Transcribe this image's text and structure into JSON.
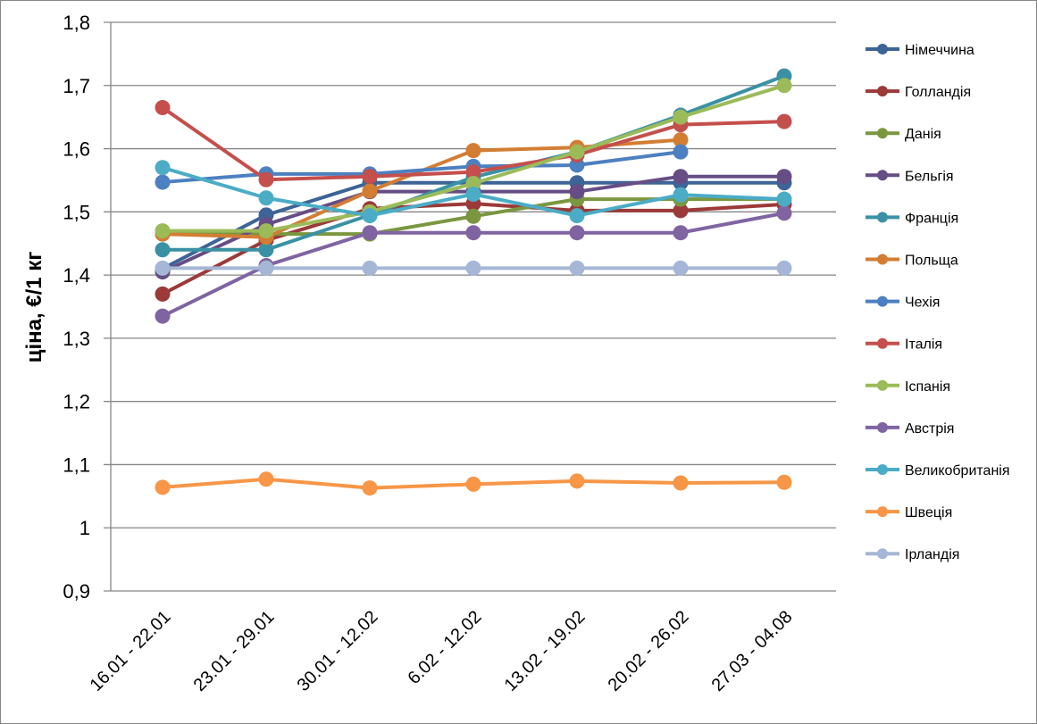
{
  "chart_data": {
    "type": "line",
    "title": "",
    "xlabel": "",
    "ylabel": "ціна, €/1 кг",
    "ylim": [
      0.9,
      1.8
    ],
    "yticks": [
      "0,9",
      "1",
      "1,1",
      "1,2",
      "1,3",
      "1,4",
      "1,5",
      "1,6",
      "1,7",
      "1,8"
    ],
    "categories": [
      "16.01 - 22.01",
      "23.01 - 29.01",
      "30.01 - 12.02",
      "6.02 - 12.02",
      "13.02 - 19.02",
      "20.02 - 26.02",
      "27.03 - 04.08"
    ],
    "grid": true,
    "legend": "right",
    "series": [
      {
        "name": "Німеччина",
        "color": "#3C6496",
        "values": [
          1.41,
          1.495,
          1.546,
          1.546,
          1.546,
          1.546,
          1.546
        ]
      },
      {
        "name": "Голландія",
        "color": "#9B3A38",
        "values": [
          1.37,
          1.455,
          1.505,
          1.513,
          1.502,
          1.502,
          1.512
        ]
      },
      {
        "name": "Данія",
        "color": "#7A973F",
        "values": [
          1.465,
          1.465,
          1.465,
          1.493,
          1.52,
          1.52,
          1.52
        ]
      },
      {
        "name": "Бельгія",
        "color": "#664D85",
        "values": [
          1.405,
          1.48,
          1.532,
          1.532,
          1.532,
          1.556,
          1.556
        ]
      },
      {
        "name": "Франція",
        "color": "#3A91A4",
        "values": [
          1.44,
          1.44,
          1.495,
          1.555,
          1.595,
          1.653,
          1.715
        ]
      },
      {
        "name": "Польща",
        "color": "#D37D33",
        "values": [
          1.465,
          1.46,
          1.533,
          1.597,
          1.602,
          1.614,
          null
        ]
      },
      {
        "name": "Чехія",
        "color": "#4C80C0",
        "values": [
          1.547,
          1.56,
          1.56,
          1.572,
          1.574,
          1.595,
          null
        ]
      },
      {
        "name": "Італія",
        "color": "#C44F4C",
        "values": [
          1.665,
          1.551,
          1.556,
          1.563,
          1.59,
          1.638,
          1.643
        ]
      },
      {
        "name": "Іспанія",
        "color": "#9BBB59",
        "values": [
          1.47,
          1.47,
          1.5,
          1.545,
          1.595,
          1.65,
          1.7
        ]
      },
      {
        "name": "Австрія",
        "color": "#8064A2",
        "values": [
          1.335,
          1.415,
          1.467,
          1.467,
          1.467,
          1.467,
          1.498
        ]
      },
      {
        "name": "Великобританія",
        "color": "#4BACC6",
        "values": [
          1.57,
          1.522,
          1.494,
          1.528,
          1.494,
          1.527,
          1.52
        ]
      },
      {
        "name": "Швеція",
        "color": "#F79646",
        "values": [
          1.064,
          1.077,
          1.063,
          1.069,
          1.074,
          1.071,
          1.072
        ]
      },
      {
        "name": "Ірландія",
        "color": "#A5B6D6",
        "values": [
          1.411,
          1.411,
          1.411,
          1.411,
          1.411,
          1.411,
          1.411
        ]
      }
    ]
  }
}
